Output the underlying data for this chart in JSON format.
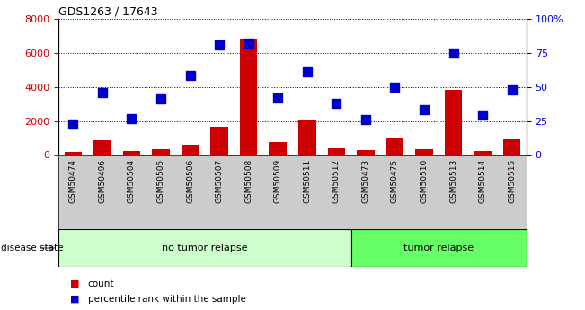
{
  "title": "GDS1263 / 17643",
  "samples": [
    "GSM50474",
    "GSM50496",
    "GSM50504",
    "GSM50505",
    "GSM50506",
    "GSM50507",
    "GSM50508",
    "GSM50509",
    "GSM50511",
    "GSM50512",
    "GSM50473",
    "GSM50475",
    "GSM50510",
    "GSM50513",
    "GSM50514",
    "GSM50515"
  ],
  "counts": [
    200,
    850,
    250,
    350,
    580,
    1650,
    6800,
    750,
    2050,
    420,
    280,
    950,
    330,
    3800,
    250,
    900
  ],
  "percentiles": [
    23,
    46,
    27,
    41,
    58,
    81,
    82,
    42,
    61,
    38,
    26,
    50,
    33,
    75,
    29,
    48
  ],
  "no_tumor_count": 10,
  "tumor_count": 6,
  "left_ylim": [
    0,
    8000
  ],
  "right_ylim": [
    0,
    100
  ],
  "left_yticks": [
    0,
    2000,
    4000,
    6000,
    8000
  ],
  "right_yticks": [
    0,
    25,
    50,
    75,
    100
  ],
  "right_yticklabels": [
    "0",
    "25",
    "50",
    "75",
    "100%"
  ],
  "bar_color": "#cc0000",
  "dot_color": "#0000cc",
  "no_tumor_light_color": "#ccffcc",
  "tumor_bright_color": "#66ff66",
  "label_bg_color": "#cccccc",
  "bar_width": 0.6,
  "dot_size": 55,
  "legend_count_label": "count",
  "legend_pct_label": "percentile rank within the sample",
  "disease_state_label": "disease state",
  "no_tumor_label": "no tumor relapse",
  "tumor_label": "tumor relapse"
}
